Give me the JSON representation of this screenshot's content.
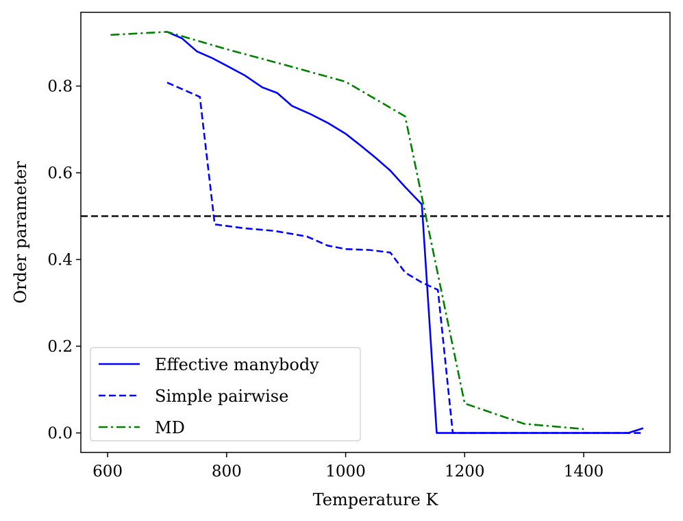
{
  "chart_data": {
    "type": "line",
    "title": "",
    "xlabel": "Temperature K",
    "ylabel": "Order parameter",
    "xlim": [
      555,
      1545
    ],
    "ylim": [
      -0.045,
      0.97
    ],
    "xticks": [
      600,
      800,
      1000,
      1200,
      1400
    ],
    "xtick_labels": [
      "600",
      "800",
      "1000",
      "1200",
      "1400"
    ],
    "yticks": [
      0.0,
      0.2,
      0.4,
      0.6,
      0.8
    ],
    "ytick_labels": [
      "0.0",
      "0.2",
      "0.4",
      "0.6",
      "0.8"
    ],
    "grid": false,
    "legend_position": "lower-left",
    "reference_line": {
      "y": 0.5,
      "color": "#000000",
      "style": "dashed"
    },
    "series": [
      {
        "name": "Effective manybody",
        "color": "#0000ff",
        "style": "solid",
        "x": [
          700,
          725,
          750,
          775,
          800,
          830,
          860,
          885,
          910,
          940,
          970,
          1000,
          1025,
          1050,
          1075,
          1100,
          1128,
          1153,
          1200,
          1300,
          1400,
          1475,
          1500
        ],
        "y": [
          0.925,
          0.91,
          0.88,
          0.865,
          0.847,
          0.825,
          0.797,
          0.784,
          0.754,
          0.736,
          0.715,
          0.69,
          0.663,
          0.635,
          0.605,
          0.567,
          0.527,
          0.0,
          0.0,
          0.0,
          0.0,
          0.0,
          0.011
        ]
      },
      {
        "name": "Simple pairwise",
        "color": "#0000ff",
        "style": "dashed",
        "x": [
          700,
          755,
          780,
          830,
          880,
          935,
          970,
          1000,
          1040,
          1075,
          1100,
          1128,
          1155,
          1180,
          1300,
          1400,
          1500
        ],
        "y": [
          0.808,
          0.775,
          0.481,
          0.472,
          0.466,
          0.453,
          0.432,
          0.424,
          0.422,
          0.416,
          0.37,
          0.347,
          0.33,
          0.0,
          0.0,
          0.0,
          0.0
        ]
      },
      {
        "name": "MD",
        "color": "#008000",
        "style": "dashdot",
        "x": [
          605,
          700,
          800,
          900,
          1000,
          1100,
          1200,
          1300,
          1400
        ],
        "y": [
          0.918,
          0.925,
          0.885,
          0.848,
          0.81,
          0.73,
          0.068,
          0.021,
          0.009
        ]
      }
    ]
  }
}
